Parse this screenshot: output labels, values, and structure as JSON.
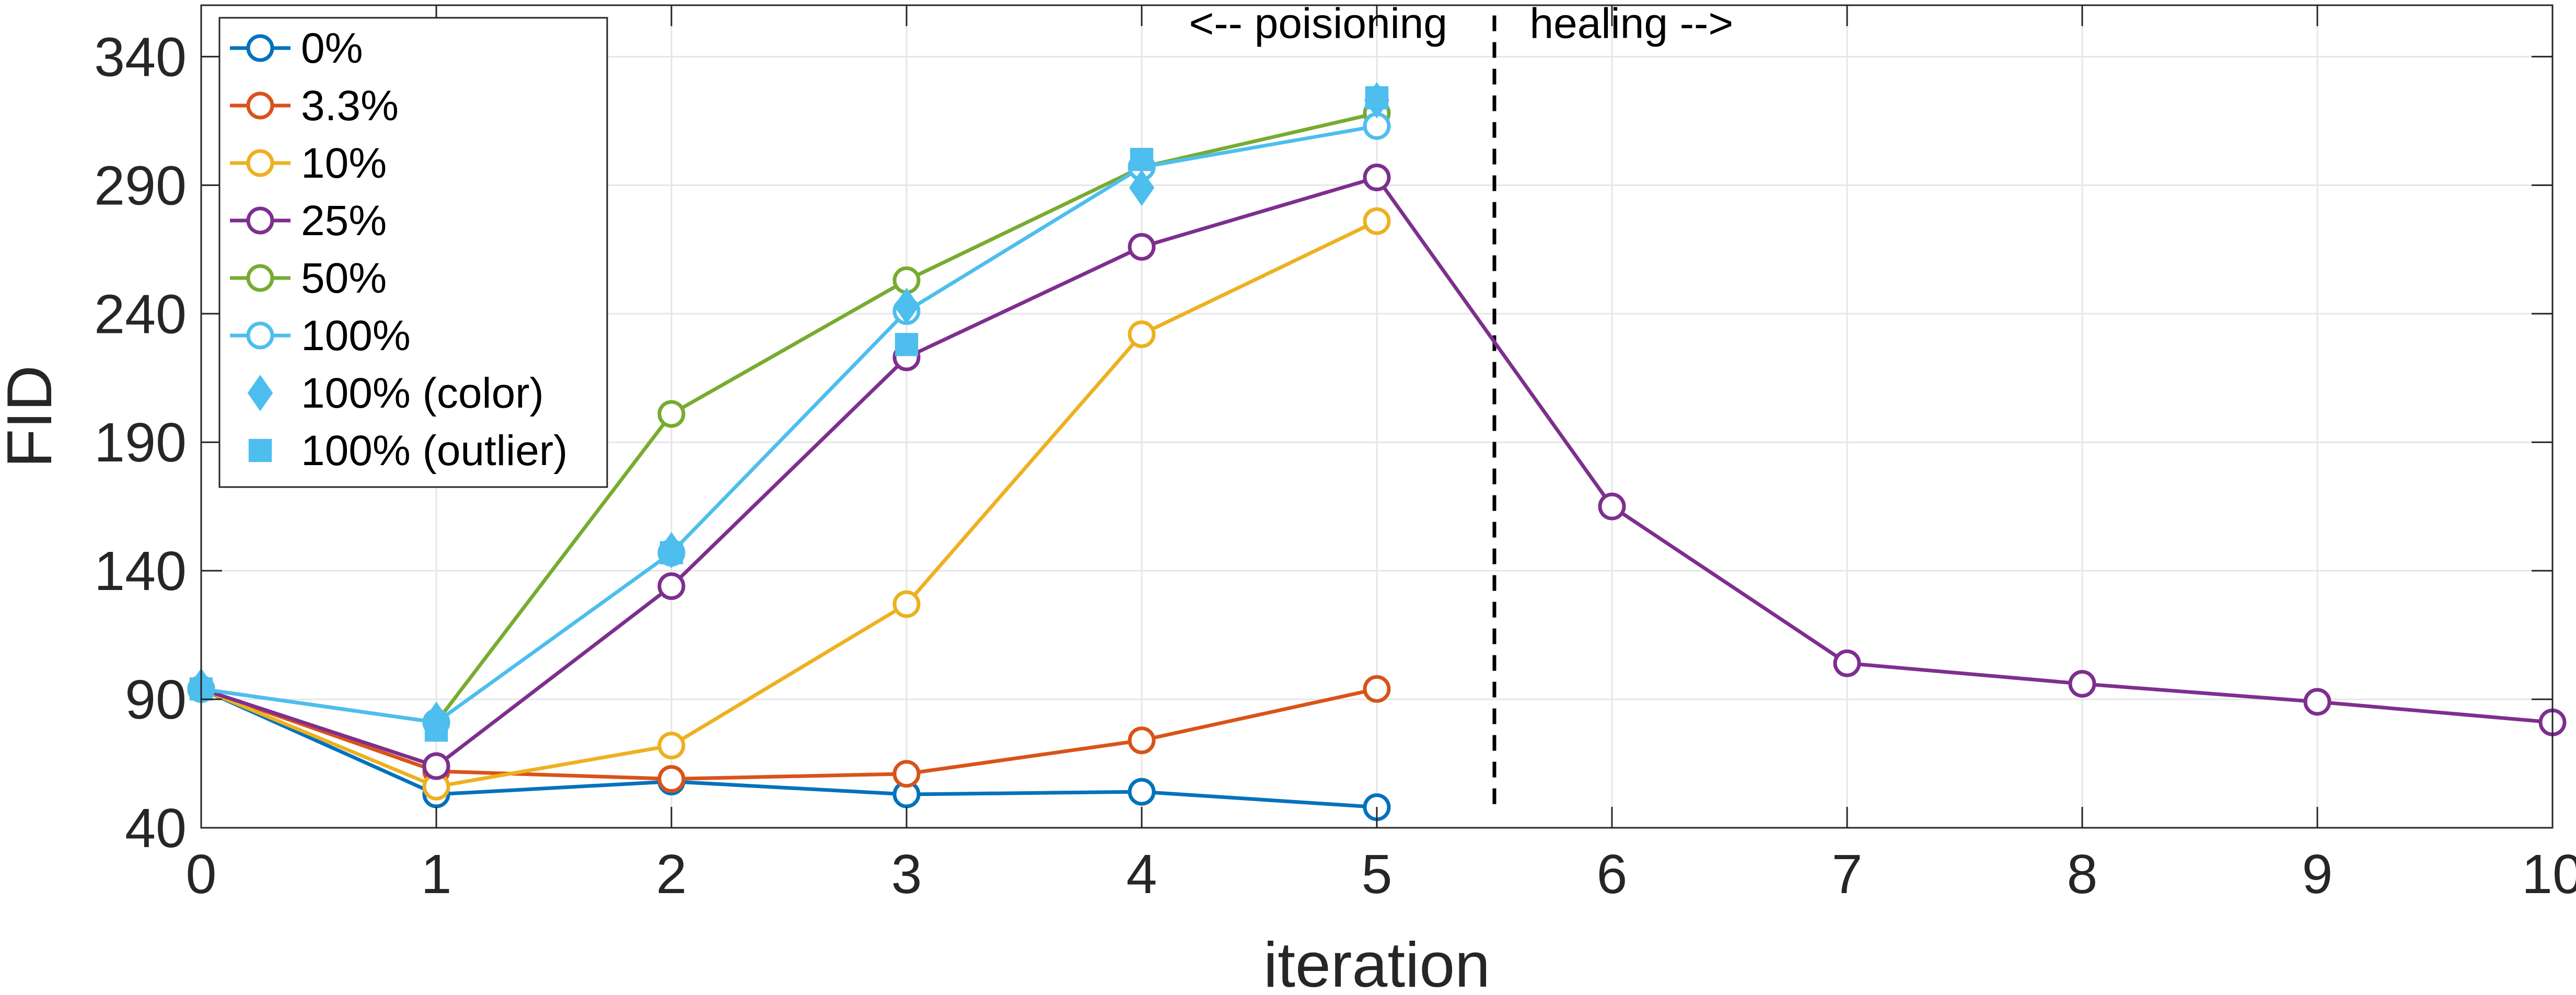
{
  "chart_data": {
    "type": "line",
    "xlabel": "iteration",
    "ylabel": "FID",
    "xlim": [
      0,
      10
    ],
    "ylim": [
      40,
      360
    ],
    "xticks": [
      0,
      1,
      2,
      3,
      4,
      5,
      6,
      7,
      8,
      9,
      10
    ],
    "yticks": [
      40,
      90,
      140,
      190,
      240,
      290,
      340
    ],
    "grid": true,
    "legend_position": "top-left",
    "divider": {
      "x": 5.5,
      "style": "dashed"
    },
    "annotations": [
      {
        "text": "<-- poisioning",
        "x": 5.3,
        "y": 353,
        "anchor": "end"
      },
      {
        "text": "healing -->",
        "x": 5.65,
        "y": 353,
        "anchor": "start"
      }
    ],
    "series": [
      {
        "name": "0%",
        "color": "#0072BD",
        "marker": "circle-open",
        "x": [
          0,
          1,
          2,
          3,
          4,
          5
        ],
        "y": [
          94,
          53,
          58,
          53,
          54,
          48
        ]
      },
      {
        "name": "3.3%",
        "color": "#D95319",
        "marker": "circle-open",
        "x": [
          0,
          1,
          2,
          3,
          4,
          5
        ],
        "y": [
          94,
          62,
          59,
          61,
          74,
          94
        ]
      },
      {
        "name": "10%",
        "color": "#EDB120",
        "marker": "circle-open",
        "x": [
          0,
          1,
          2,
          3,
          4,
          5
        ],
        "y": [
          94,
          56,
          72,
          127,
          232,
          276
        ]
      },
      {
        "name": "25%",
        "color": "#7E2F8E",
        "marker": "circle-open",
        "x": [
          0,
          1,
          2,
          3,
          4,
          5,
          6,
          7,
          8,
          9,
          10
        ],
        "y": [
          94,
          64,
          134,
          223,
          266,
          293,
          165,
          104,
          96,
          89,
          81
        ]
      },
      {
        "name": "50%",
        "color": "#77AC30",
        "marker": "circle-open",
        "x": [
          0,
          1,
          2,
          3,
          4,
          5
        ],
        "y": [
          94,
          81,
          201,
          253,
          297,
          318
        ]
      },
      {
        "name": "100%",
        "color": "#4DBEEE",
        "marker": "circle-open",
        "x": [
          0,
          1,
          2,
          3,
          4,
          5
        ],
        "y": [
          94,
          81,
          147,
          241,
          297,
          313
        ]
      },
      {
        "name": "100% (color)",
        "color": "#4DBEEE",
        "marker": "diamond-filled",
        "x": [
          0,
          1,
          2,
          3,
          4,
          5
        ],
        "y": [
          95,
          82,
          148,
          243,
          289,
          323
        ]
      },
      {
        "name": "100% (outlier)",
        "color": "#4DBEEE",
        "marker": "square-filled",
        "x": [
          0,
          1,
          2,
          3,
          4,
          5
        ],
        "y": [
          94,
          78,
          147,
          228,
          300,
          324
        ]
      }
    ]
  }
}
